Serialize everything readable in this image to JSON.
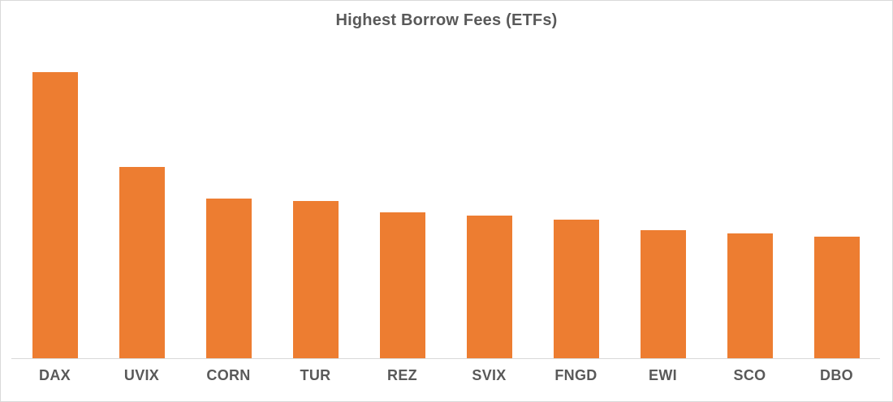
{
  "window": {
    "background": "#FFFFFF",
    "frame_border_color": "#D9D9D9"
  },
  "chart_data": {
    "type": "bar",
    "title": "Highest Borrow Fees (ETFs)",
    "categories": [
      "DAX",
      "UVIX",
      "CORN",
      "TUR",
      "REZ",
      "SVIX",
      "FNGD",
      "EWI",
      "SCO",
      "DBO"
    ],
    "values": [
      100,
      66.9,
      55.9,
      54.9,
      51.0,
      49.9,
      48.4,
      44.8,
      43.5,
      42.5
    ],
    "values_note": "relative bar heights as % of tallest bar (DAX); no numeric y-axis shown in chart",
    "xlabel": "",
    "ylabel": "",
    "ylim": [
      0,
      100
    ],
    "series_count": 1,
    "bar_color": "#ED7D31",
    "axis_line_color": "#D9D9D9",
    "title_color": "#595959",
    "label_color": "#595959",
    "legend": "none",
    "gridlines": false,
    "y_axis_visible": false,
    "x_axis_visible": true
  }
}
